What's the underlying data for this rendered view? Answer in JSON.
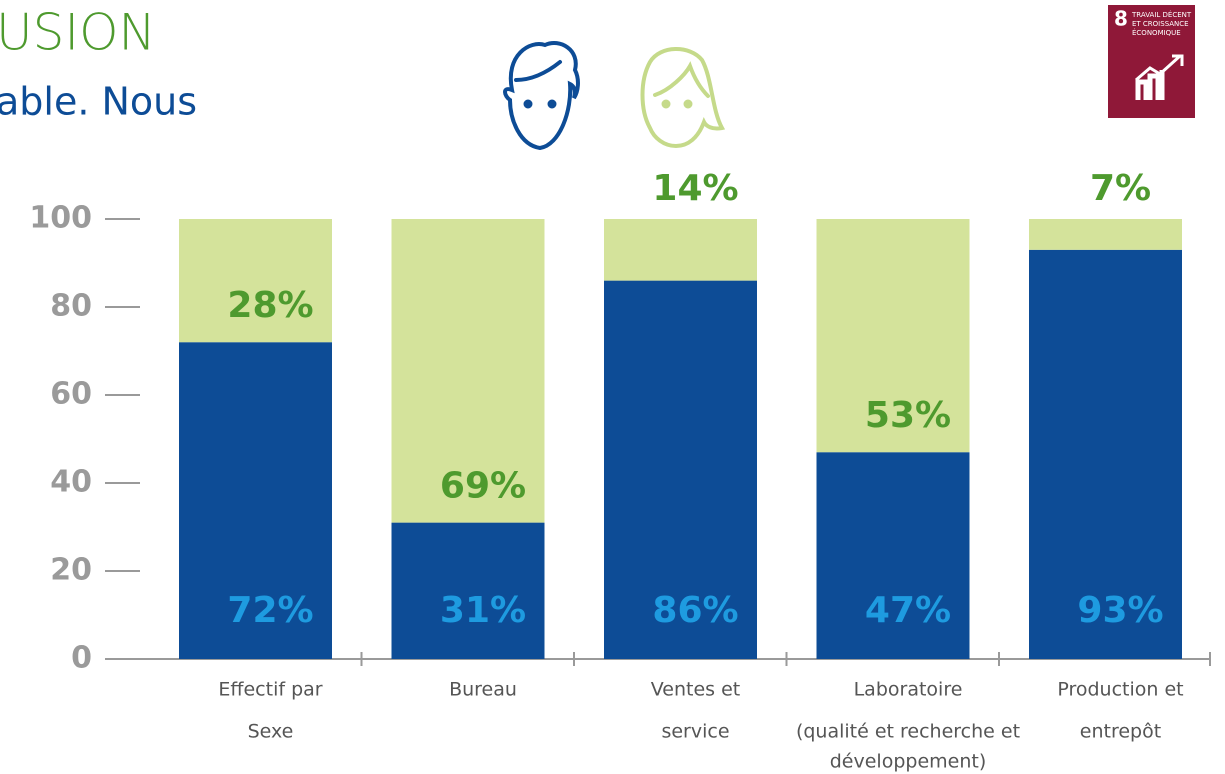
{
  "header": {
    "title": "USION",
    "subtitle": "able. Nous"
  },
  "badge": {
    "number": "8",
    "lines": [
      "TRAVAIL DÉCENT",
      "ET CROISSANCE",
      "ÉCONOMIQUE"
    ]
  },
  "chart_data": {
    "type": "stacked_bar",
    "categories": [
      [
        "Effectif par",
        "Sexe"
      ],
      [
        "Bureau"
      ],
      [
        "Ventes et",
        "service"
      ],
      [
        "Laboratoire",
        "(qualité et recherche et",
        "développement)"
      ],
      [
        "Production et",
        "entrepôt"
      ]
    ],
    "series": [
      {
        "color": "#0d4c96",
        "label_color": "#1e9be0",
        "values": [
          72,
          31,
          86,
          47,
          93
        ],
        "value_labels": [
          "72%",
          "31%",
          "86%",
          "47%",
          "93%"
        ]
      },
      {
        "color": "#d4e39b",
        "label_color": "#4e9a2e",
        "values": [
          28,
          69,
          14,
          53,
          7
        ],
        "value_labels": [
          "28%",
          "69%",
          "14%",
          "53%",
          "7%"
        ]
      }
    ],
    "ylim": [
      0,
      100
    ],
    "yticks": [
      0,
      20,
      40,
      60,
      80,
      100
    ]
  }
}
